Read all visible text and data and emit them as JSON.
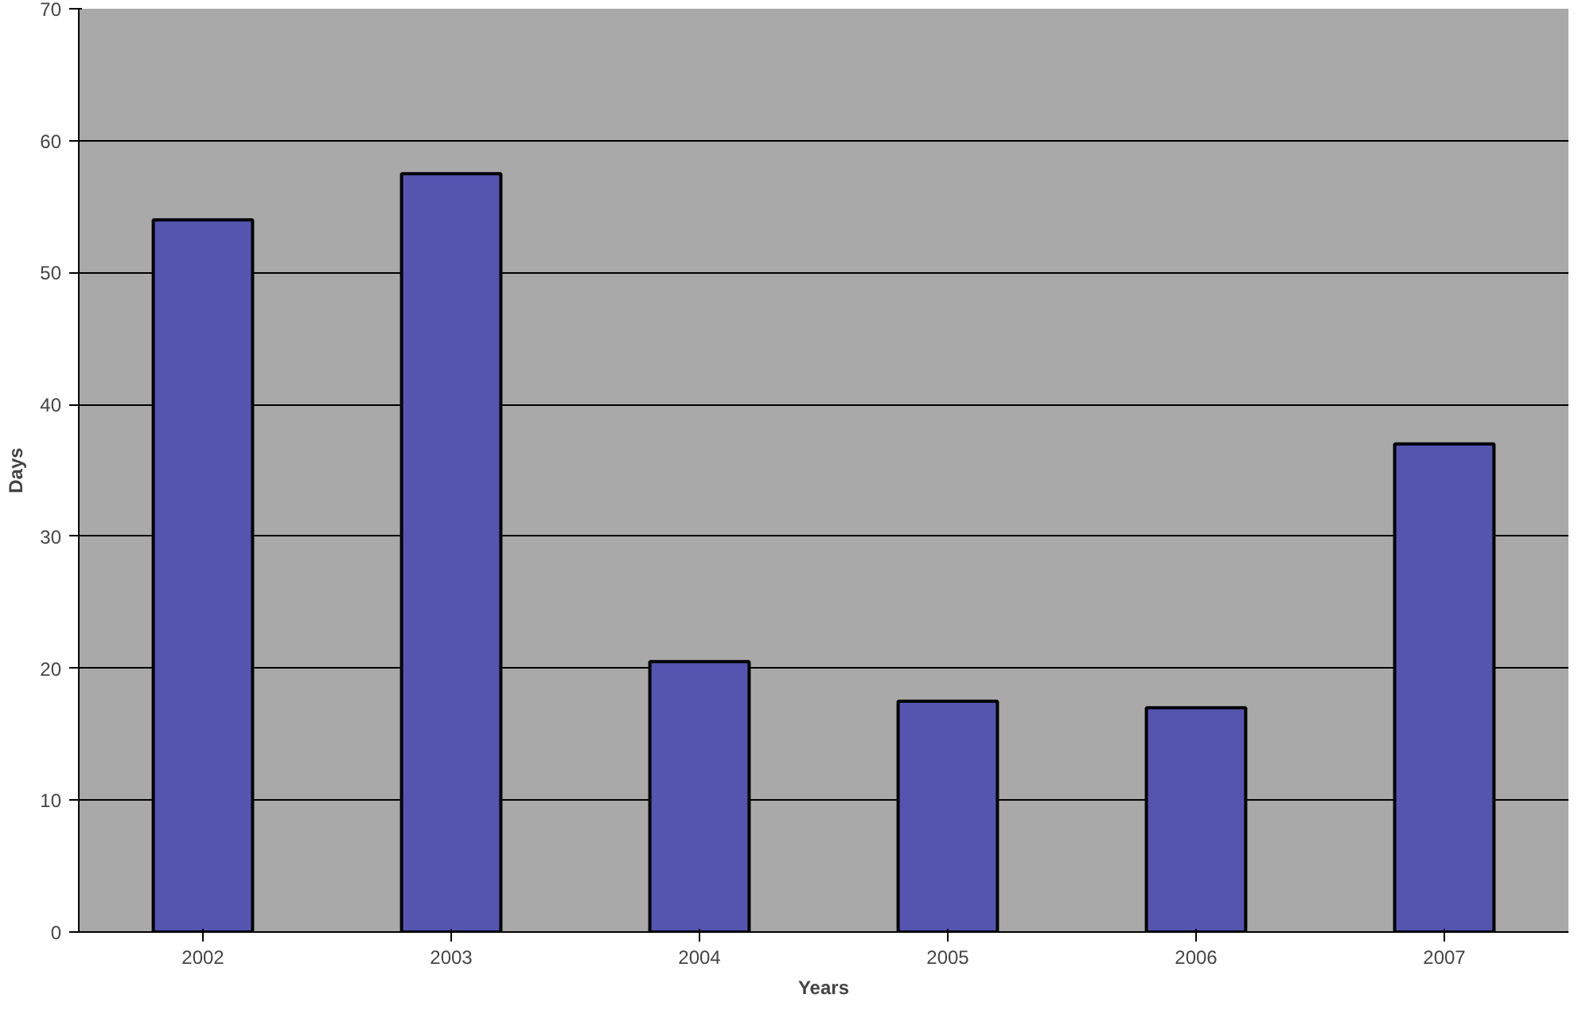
{
  "chart_data": {
    "type": "bar",
    "xlabel": "Years",
    "ylabel": "Days",
    "categories": [
      "2002",
      "2003",
      "2004",
      "2005",
      "2006",
      "2007"
    ],
    "values": [
      54,
      57.5,
      20.5,
      17.5,
      17,
      37
    ],
    "color": "#5555b0",
    "ylim": [
      0,
      70
    ],
    "yticks": [
      0,
      10,
      20,
      30,
      40,
      50,
      60,
      70
    ],
    "grid": "y"
  }
}
